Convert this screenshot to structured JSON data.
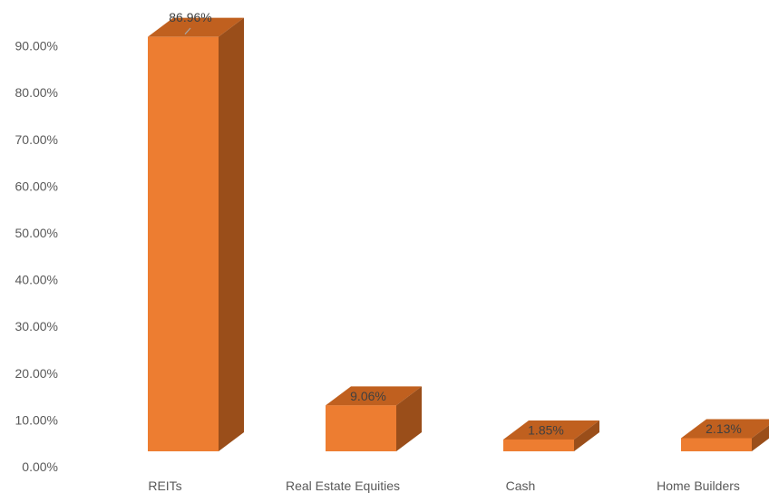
{
  "chart_data": {
    "type": "bar",
    "style": "3d-column",
    "title": "",
    "xlabel": "",
    "ylabel": "",
    "categories": [
      "REITs",
      "Real Estate Equities",
      "Cash",
      "Home Builders"
    ],
    "values": [
      86.96,
      9.06,
      1.85,
      2.13
    ],
    "data_labels": [
      "86.96%",
      "9.06%",
      "1.85%",
      "2.13%"
    ],
    "ylim": [
      0,
      90
    ],
    "yticks": [
      0,
      10,
      20,
      30,
      40,
      50,
      60,
      70,
      80,
      90
    ],
    "ytick_labels": [
      "0.00%",
      "10.00%",
      "20.00%",
      "30.00%",
      "40.00%",
      "50.00%",
      "60.00%",
      "70.00%",
      "80.00%",
      "90.00%"
    ],
    "grid": false,
    "legend": "none",
    "colors": {
      "front": "#ED7D31",
      "top": "#C0601F",
      "side": "#9A4E1A"
    }
  }
}
